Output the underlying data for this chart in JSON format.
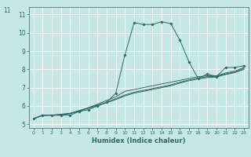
{
  "xlabel": "Humidex (Indice chaleur)",
  "bg_color": "#c5e8e6",
  "grid_color": "#ffffff",
  "line_color": "#2d6b63",
  "xlim": [
    -0.5,
    23.5
  ],
  "ylim": [
    4.8,
    11.4
  ],
  "xticks": [
    0,
    1,
    2,
    3,
    4,
    5,
    6,
    7,
    8,
    9,
    10,
    11,
    12,
    13,
    14,
    15,
    16,
    17,
    18,
    19,
    20,
    21,
    22,
    23
  ],
  "yticks": [
    5,
    6,
    7,
    8,
    9,
    10,
    11
  ],
  "series": [
    {
      "x": [
        0,
        1,
        2,
        3,
        4,
        5,
        6,
        7,
        8,
        9,
        10,
        11,
        12,
        13,
        14,
        15,
        16,
        17,
        18,
        19,
        20,
        21,
        22,
        23
      ],
      "y": [
        5.3,
        5.5,
        5.5,
        5.5,
        5.5,
        5.7,
        5.8,
        6.0,
        6.2,
        6.7,
        8.8,
        10.55,
        10.45,
        10.45,
        10.6,
        10.5,
        9.6,
        8.4,
        7.5,
        7.75,
        7.6,
        8.1,
        8.1,
        8.2
      ],
      "marker": true
    },
    {
      "x": [
        0,
        1,
        2,
        3,
        4,
        5,
        6,
        7,
        8,
        9,
        10,
        11,
        12,
        13,
        14,
        15,
        16,
        17,
        18,
        19,
        20,
        21,
        22,
        23
      ],
      "y": [
        5.3,
        5.5,
        5.5,
        5.5,
        5.6,
        5.7,
        5.9,
        6.1,
        6.3,
        6.5,
        6.8,
        6.9,
        7.0,
        7.1,
        7.2,
        7.3,
        7.4,
        7.5,
        7.6,
        7.65,
        7.65,
        7.8,
        7.9,
        8.1
      ],
      "marker": false
    },
    {
      "x": [
        0,
        1,
        2,
        3,
        4,
        5,
        6,
        7,
        8,
        9,
        10,
        11,
        12,
        13,
        14,
        15,
        16,
        17,
        18,
        19,
        20,
        21,
        22,
        23
      ],
      "y": [
        5.3,
        5.5,
        5.5,
        5.55,
        5.6,
        5.75,
        5.9,
        6.05,
        6.2,
        6.4,
        6.6,
        6.75,
        6.85,
        6.95,
        7.05,
        7.15,
        7.3,
        7.42,
        7.52,
        7.6,
        7.62,
        7.75,
        7.85,
        8.05
      ],
      "marker": false
    },
    {
      "x": [
        0,
        1,
        2,
        3,
        4,
        5,
        6,
        7,
        8,
        9,
        10,
        11,
        12,
        13,
        14,
        15,
        16,
        17,
        18,
        19,
        20,
        21,
        22,
        23
      ],
      "y": [
        5.3,
        5.48,
        5.5,
        5.52,
        5.58,
        5.72,
        5.88,
        6.02,
        6.18,
        6.35,
        6.55,
        6.7,
        6.8,
        6.9,
        7.0,
        7.1,
        7.25,
        7.38,
        7.48,
        7.55,
        7.58,
        7.72,
        7.82,
        8.0
      ],
      "marker": false
    }
  ]
}
